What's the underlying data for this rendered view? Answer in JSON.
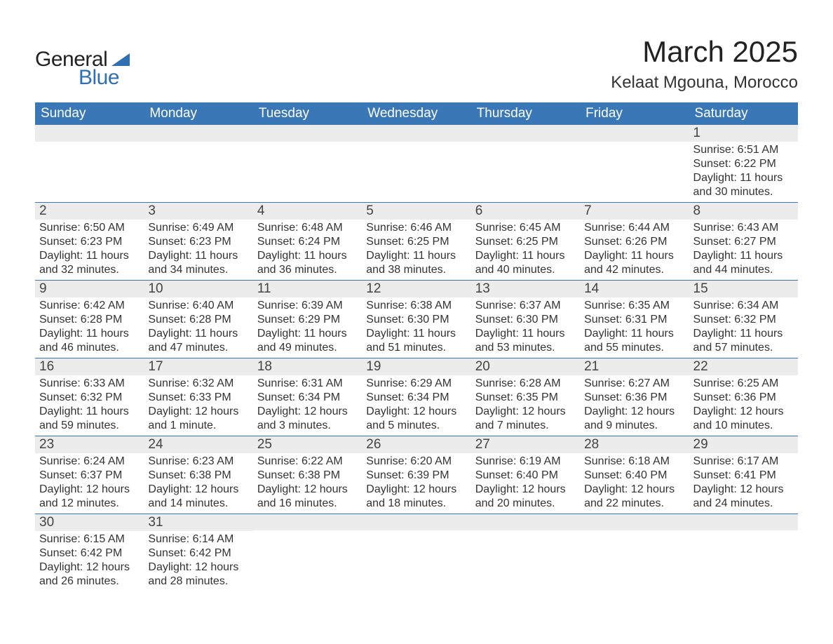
{
  "brand": {
    "general": "General",
    "blue": "Blue"
  },
  "title": "March 2025",
  "location": "Kelaat Mgouna, Morocco",
  "colors": {
    "header_bg": "#3a77b7",
    "header_text": "#ffffff",
    "strip_bg": "#ececec",
    "body_text": "#333333",
    "rule": "#3a77b7",
    "logo_blue": "#2f6fb2"
  },
  "typography": {
    "title_fontsize": 42,
    "location_fontsize": 24,
    "header_fontsize": 19,
    "daynum_fontsize": 19,
    "info_fontsize": 16,
    "logo_fontsize": 30
  },
  "layout": {
    "columns": 7,
    "weeks": 6,
    "month_start_col": 6
  },
  "day_headers": [
    "Sunday",
    "Monday",
    "Tuesday",
    "Wednesday",
    "Thursday",
    "Friday",
    "Saturday"
  ],
  "labels": {
    "sunrise": "Sunrise: ",
    "sunset": "Sunset: ",
    "daylight": "Daylight: "
  },
  "days": [
    {
      "n": 1,
      "sr": "6:51 AM",
      "ss": "6:22 PM",
      "dl": "11 hours and 30 minutes."
    },
    {
      "n": 2,
      "sr": "6:50 AM",
      "ss": "6:23 PM",
      "dl": "11 hours and 32 minutes."
    },
    {
      "n": 3,
      "sr": "6:49 AM",
      "ss": "6:23 PM",
      "dl": "11 hours and 34 minutes."
    },
    {
      "n": 4,
      "sr": "6:48 AM",
      "ss": "6:24 PM",
      "dl": "11 hours and 36 minutes."
    },
    {
      "n": 5,
      "sr": "6:46 AM",
      "ss": "6:25 PM",
      "dl": "11 hours and 38 minutes."
    },
    {
      "n": 6,
      "sr": "6:45 AM",
      "ss": "6:25 PM",
      "dl": "11 hours and 40 minutes."
    },
    {
      "n": 7,
      "sr": "6:44 AM",
      "ss": "6:26 PM",
      "dl": "11 hours and 42 minutes."
    },
    {
      "n": 8,
      "sr": "6:43 AM",
      "ss": "6:27 PM",
      "dl": "11 hours and 44 minutes."
    },
    {
      "n": 9,
      "sr": "6:42 AM",
      "ss": "6:28 PM",
      "dl": "11 hours and 46 minutes."
    },
    {
      "n": 10,
      "sr": "6:40 AM",
      "ss": "6:28 PM",
      "dl": "11 hours and 47 minutes."
    },
    {
      "n": 11,
      "sr": "6:39 AM",
      "ss": "6:29 PM",
      "dl": "11 hours and 49 minutes."
    },
    {
      "n": 12,
      "sr": "6:38 AM",
      "ss": "6:30 PM",
      "dl": "11 hours and 51 minutes."
    },
    {
      "n": 13,
      "sr": "6:37 AM",
      "ss": "6:30 PM",
      "dl": "11 hours and 53 minutes."
    },
    {
      "n": 14,
      "sr": "6:35 AM",
      "ss": "6:31 PM",
      "dl": "11 hours and 55 minutes."
    },
    {
      "n": 15,
      "sr": "6:34 AM",
      "ss": "6:32 PM",
      "dl": "11 hours and 57 minutes."
    },
    {
      "n": 16,
      "sr": "6:33 AM",
      "ss": "6:32 PM",
      "dl": "11 hours and 59 minutes."
    },
    {
      "n": 17,
      "sr": "6:32 AM",
      "ss": "6:33 PM",
      "dl": "12 hours and 1 minute."
    },
    {
      "n": 18,
      "sr": "6:31 AM",
      "ss": "6:34 PM",
      "dl": "12 hours and 3 minutes."
    },
    {
      "n": 19,
      "sr": "6:29 AM",
      "ss": "6:34 PM",
      "dl": "12 hours and 5 minutes."
    },
    {
      "n": 20,
      "sr": "6:28 AM",
      "ss": "6:35 PM",
      "dl": "12 hours and 7 minutes."
    },
    {
      "n": 21,
      "sr": "6:27 AM",
      "ss": "6:36 PM",
      "dl": "12 hours and 9 minutes."
    },
    {
      "n": 22,
      "sr": "6:25 AM",
      "ss": "6:36 PM",
      "dl": "12 hours and 10 minutes."
    },
    {
      "n": 23,
      "sr": "6:24 AM",
      "ss": "6:37 PM",
      "dl": "12 hours and 12 minutes."
    },
    {
      "n": 24,
      "sr": "6:23 AM",
      "ss": "6:38 PM",
      "dl": "12 hours and 14 minutes."
    },
    {
      "n": 25,
      "sr": "6:22 AM",
      "ss": "6:38 PM",
      "dl": "12 hours and 16 minutes."
    },
    {
      "n": 26,
      "sr": "6:20 AM",
      "ss": "6:39 PM",
      "dl": "12 hours and 18 minutes."
    },
    {
      "n": 27,
      "sr": "6:19 AM",
      "ss": "6:40 PM",
      "dl": "12 hours and 20 minutes."
    },
    {
      "n": 28,
      "sr": "6:18 AM",
      "ss": "6:40 PM",
      "dl": "12 hours and 22 minutes."
    },
    {
      "n": 29,
      "sr": "6:17 AM",
      "ss": "6:41 PM",
      "dl": "12 hours and 24 minutes."
    },
    {
      "n": 30,
      "sr": "6:15 AM",
      "ss": "6:42 PM",
      "dl": "12 hours and 26 minutes."
    },
    {
      "n": 31,
      "sr": "6:14 AM",
      "ss": "6:42 PM",
      "dl": "12 hours and 28 minutes."
    }
  ]
}
